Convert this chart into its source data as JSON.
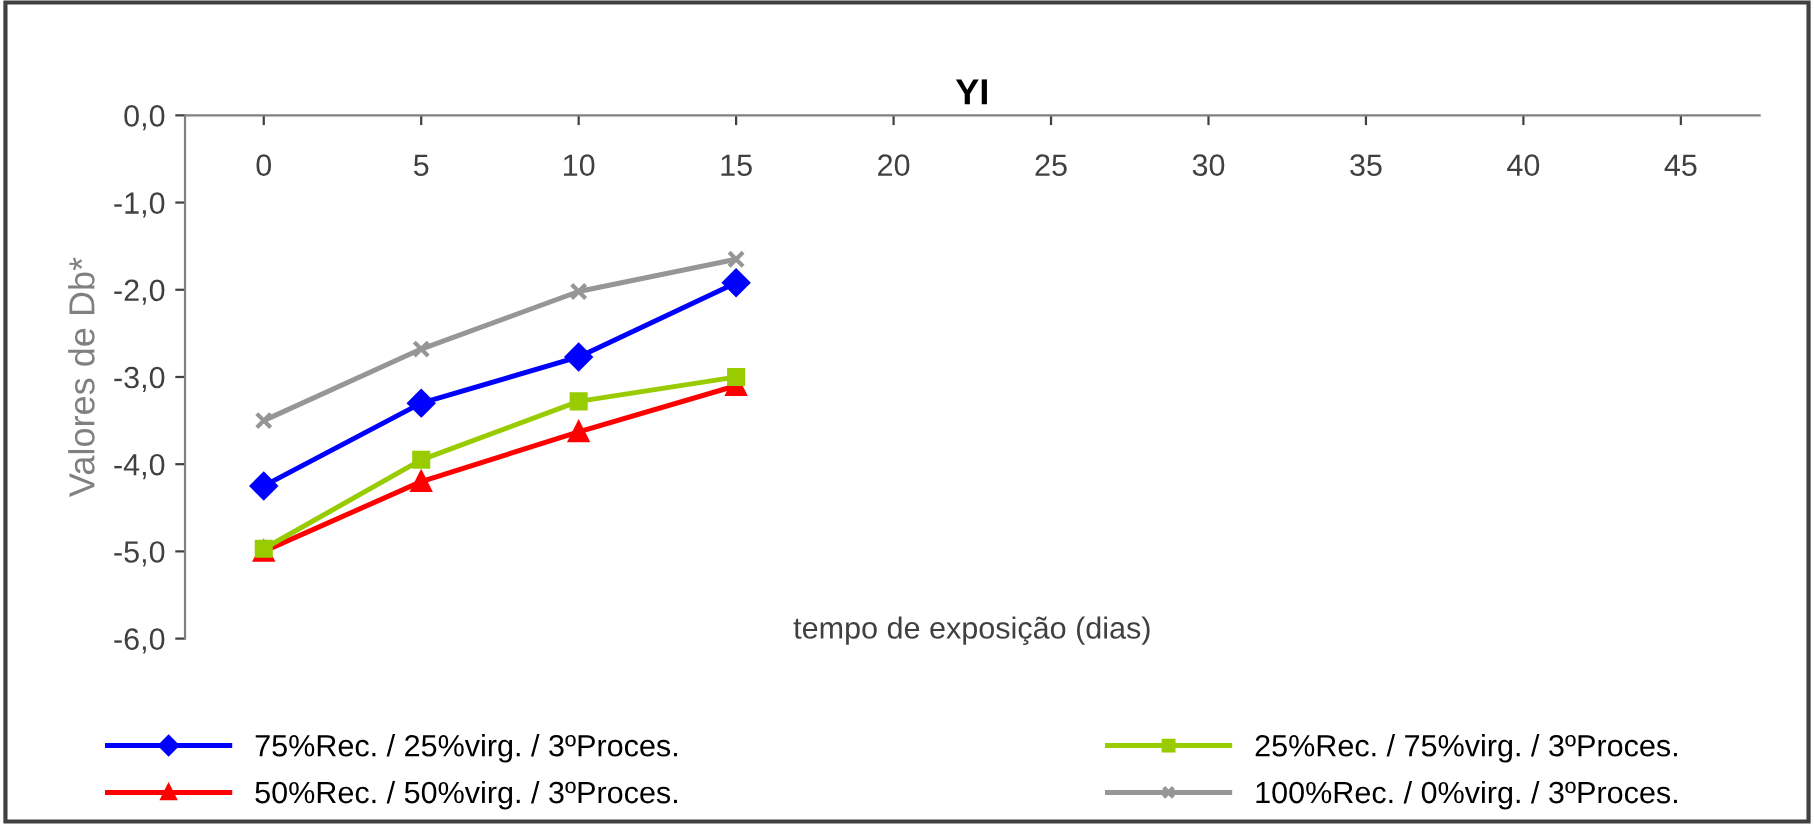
{
  "chart_data": {
    "type": "line",
    "title": "YI",
    "xlabel": "tempo de exposição (dias)",
    "ylabel": "Valores de Db*",
    "x": [
      0,
      5,
      10,
      15
    ],
    "series": [
      {
        "name": "75%Rec. / 25%virg. / 3ºProces.",
        "color": "#0000ff",
        "marker": "diamond",
        "values": [
          -4.25,
          -3.3,
          -2.77,
          -1.92
        ]
      },
      {
        "name": "25%Rec. / 75%virg. / 3ºProces.",
        "color": "#99cc00",
        "marker": "square",
        "values": [
          -4.97,
          -3.95,
          -3.28,
          -3.0
        ]
      },
      {
        "name": "50%Rec. / 50%virg. / 3ºProces.",
        "color": "#ff0000",
        "marker": "triangle",
        "values": [
          -5.0,
          -4.2,
          -3.63,
          -3.1
        ]
      },
      {
        "name": "100%Rec. / 0%virg. / 3ºProces.",
        "color": "#969696",
        "marker": "cross",
        "values": [
          -3.5,
          -2.68,
          -2.02,
          -1.65
        ]
      }
    ],
    "xlim": [
      -2.5,
      47.5
    ],
    "xticks": [
      0,
      5,
      10,
      15,
      20,
      25,
      30,
      35,
      40,
      45
    ],
    "ylim": [
      -6,
      0
    ],
    "yticks": [
      {
        "value": 0,
        "label": "0,0"
      },
      {
        "value": -1,
        "label": "-1,0"
      },
      {
        "value": -2,
        "label": "-2,0"
      },
      {
        "value": -3,
        "label": "-3,0"
      },
      {
        "value": -4,
        "label": "-4,0"
      },
      {
        "value": -5,
        "label": "-5,0"
      },
      {
        "value": -6,
        "label": "-6,0"
      }
    ],
    "grid": false,
    "legend": "bottom",
    "line_style": "solid"
  }
}
